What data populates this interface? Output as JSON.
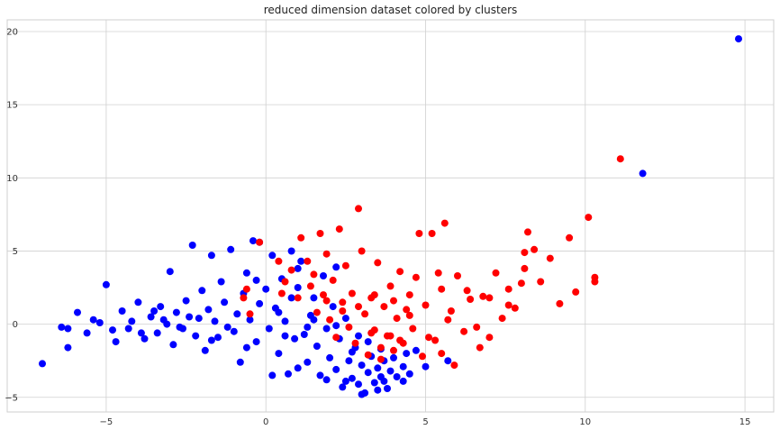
{
  "chart_data": {
    "type": "scatter",
    "title": "reduced dimension dataset colored by clusters",
    "xlabel": "",
    "ylabel": "",
    "xlim": [
      -8.1,
      15.9
    ],
    "ylim": [
      -6.0,
      20.8
    ],
    "xticks": [
      -5,
      0,
      5,
      10,
      15
    ],
    "yticks": [
      -5,
      0,
      5,
      10,
      15,
      20
    ],
    "grid": true,
    "legend": "none",
    "colors": {
      "cluster_blue": "#0000ff",
      "cluster_red": "#ff0000"
    },
    "series": [
      {
        "color": "#0000ff",
        "points": [
          [
            14.8,
            19.5
          ],
          [
            11.8,
            10.3
          ],
          [
            -7.0,
            -2.7
          ],
          [
            -6.4,
            -0.2
          ],
          [
            -6.2,
            -1.6
          ],
          [
            -5.6,
            -0.6
          ],
          [
            -5.9,
            0.8
          ],
          [
            -5.4,
            0.3
          ],
          [
            -5.0,
            2.7
          ],
          [
            -4.7,
            -1.2
          ],
          [
            -4.5,
            0.9
          ],
          [
            -4.3,
            -0.3
          ],
          [
            -4.0,
            1.5
          ],
          [
            -3.8,
            -1.0
          ],
          [
            -3.6,
            0.5
          ],
          [
            -3.4,
            -0.6
          ],
          [
            -3.3,
            1.2
          ],
          [
            -3.1,
            0.0
          ],
          [
            -3.0,
            3.6
          ],
          [
            -2.9,
            -1.4
          ],
          [
            -2.8,
            0.8
          ],
          [
            -2.6,
            -0.3
          ],
          [
            -2.5,
            1.6
          ],
          [
            -2.3,
            5.4
          ],
          [
            -2.2,
            -0.8
          ],
          [
            -2.1,
            0.4
          ],
          [
            -2.0,
            2.3
          ],
          [
            -1.9,
            -1.8
          ],
          [
            -1.8,
            1.0
          ],
          [
            -1.7,
            4.7
          ],
          [
            -1.6,
            0.2
          ],
          [
            -1.5,
            -0.9
          ],
          [
            -1.4,
            2.9
          ],
          [
            -1.3,
            1.5
          ],
          [
            -1.1,
            5.1
          ],
          [
            -1.0,
            -0.5
          ],
          [
            -0.9,
            0.7
          ],
          [
            -0.8,
            -2.6
          ],
          [
            -0.7,
            2.1
          ],
          [
            -0.6,
            3.5
          ],
          [
            -0.5,
            0.3
          ],
          [
            -0.4,
            5.7
          ],
          [
            -0.3,
            -1.2
          ],
          [
            -0.2,
            1.4
          ],
          [
            0.0,
            2.4
          ],
          [
            0.1,
            -0.3
          ],
          [
            0.2,
            4.7
          ],
          [
            0.3,
            1.1
          ],
          [
            0.4,
            -2.0
          ],
          [
            0.5,
            3.1
          ],
          [
            0.6,
            0.2
          ],
          [
            0.7,
            -3.4
          ],
          [
            0.8,
            1.8
          ],
          [
            0.9,
            -1.0
          ],
          [
            1.0,
            2.5
          ],
          [
            1.1,
            4.3
          ],
          [
            1.2,
            -0.7
          ],
          [
            1.3,
            -2.6
          ],
          [
            1.4,
            0.6
          ],
          [
            1.5,
            1.8
          ],
          [
            1.6,
            -1.5
          ],
          [
            1.7,
            -3.5
          ],
          [
            1.8,
            3.3
          ],
          [
            1.9,
            -0.3
          ],
          [
            2.0,
            -2.3
          ],
          [
            2.1,
            1.2
          ],
          [
            2.2,
            -3.1
          ],
          [
            2.3,
            -1.0
          ],
          [
            2.4,
            -4.3
          ],
          [
            2.5,
            0.4
          ],
          [
            2.6,
            -2.5
          ],
          [
            2.7,
            -3.7
          ],
          [
            2.8,
            -1.6
          ],
          [
            2.9,
            -4.1
          ],
          [
            3.0,
            -2.8
          ],
          [
            3.1,
            -4.7
          ],
          [
            3.2,
            -3.3
          ],
          [
            3.3,
            -2.2
          ],
          [
            3.4,
            -4.0
          ],
          [
            3.5,
            -3.0
          ],
          [
            3.6,
            -3.6
          ],
          [
            3.7,
            -2.5
          ],
          [
            3.8,
            -4.4
          ],
          [
            3.9,
            -3.2
          ],
          [
            4.1,
            -3.6
          ],
          [
            4.3,
            -2.9
          ],
          [
            4.5,
            -3.4
          ],
          [
            4.7,
            -1.8
          ],
          [
            5.0,
            -2.9
          ],
          [
            5.7,
            -2.5
          ],
          [
            -4.8,
            -0.4
          ],
          [
            -4.2,
            0.2
          ],
          [
            -3.9,
            -0.6
          ],
          [
            -3.5,
            0.9
          ],
          [
            -3.2,
            0.3
          ],
          [
            -2.7,
            -0.2
          ],
          [
            -2.4,
            0.5
          ],
          [
            -1.2,
            -0.2
          ],
          [
            0.6,
            -0.8
          ],
          [
            1.3,
            -0.2
          ],
          [
            2.2,
            -0.1
          ],
          [
            2.7,
            -1.9
          ],
          [
            3.2,
            -1.2
          ],
          [
            3.6,
            -1.7
          ],
          [
            4.0,
            -2.3
          ],
          [
            4.4,
            -2.0
          ],
          [
            0.2,
            -3.5
          ],
          [
            1.0,
            -3.0
          ],
          [
            1.9,
            -3.8
          ],
          [
            2.5,
            -3.9
          ],
          [
            3.0,
            -4.8
          ],
          [
            3.5,
            -4.5
          ],
          [
            -6.2,
            -0.3
          ],
          [
            -5.2,
            0.1
          ],
          [
            -1.7,
            -1.1
          ],
          [
            -0.6,
            -1.6
          ],
          [
            0.4,
            0.8
          ],
          [
            1.5,
            0.3
          ],
          [
            2.9,
            -0.8
          ],
          [
            3.7,
            -3.9
          ],
          [
            4.3,
            -3.9
          ],
          [
            0.8,
            5.0
          ],
          [
            -0.2,
            5.6
          ],
          [
            2.2,
            3.9
          ],
          [
            1.0,
            3.8
          ],
          [
            -0.3,
            3.0
          ]
        ]
      },
      {
        "color": "#ff0000",
        "points": [
          [
            11.1,
            11.3
          ],
          [
            10.1,
            7.3
          ],
          [
            9.5,
            5.9
          ],
          [
            10.3,
            3.2
          ],
          [
            10.3,
            2.9
          ],
          [
            9.2,
            1.4
          ],
          [
            8.9,
            4.5
          ],
          [
            8.6,
            2.9
          ],
          [
            8.2,
            6.3
          ],
          [
            8.4,
            5.1
          ],
          [
            8.1,
            4.9
          ],
          [
            7.8,
            1.1
          ],
          [
            7.6,
            2.4
          ],
          [
            7.4,
            0.4
          ],
          [
            7.2,
            3.5
          ],
          [
            7.0,
            -0.9
          ],
          [
            6.6,
            -0.2
          ],
          [
            6.4,
            1.7
          ],
          [
            6.2,
            -0.5
          ],
          [
            6.0,
            3.3
          ],
          [
            5.8,
            0.9
          ],
          [
            5.6,
            6.9
          ],
          [
            5.5,
            2.4
          ],
          [
            5.3,
            -1.1
          ],
          [
            5.2,
            6.2
          ],
          [
            5.0,
            1.3
          ],
          [
            4.8,
            6.2
          ],
          [
            4.7,
            3.2
          ],
          [
            4.6,
            -0.3
          ],
          [
            4.5,
            2.0
          ],
          [
            4.4,
            1.0
          ],
          [
            4.3,
            -1.3
          ],
          [
            4.2,
            3.6
          ],
          [
            4.1,
            0.4
          ],
          [
            4.0,
            -1.8
          ],
          [
            3.9,
            2.6
          ],
          [
            3.8,
            -0.8
          ],
          [
            3.7,
            1.2
          ],
          [
            3.6,
            -1.6
          ],
          [
            3.5,
            4.2
          ],
          [
            3.4,
            -0.4
          ],
          [
            3.3,
            1.8
          ],
          [
            3.2,
            -2.1
          ],
          [
            3.1,
            0.7
          ],
          [
            3.0,
            5.0
          ],
          [
            2.9,
            7.9
          ],
          [
            2.8,
            -1.3
          ],
          [
            2.7,
            2.1
          ],
          [
            2.6,
            -0.2
          ],
          [
            2.5,
            4.0
          ],
          [
            2.4,
            1.5
          ],
          [
            2.3,
            6.5
          ],
          [
            2.2,
            -0.9
          ],
          [
            2.1,
            3.0
          ],
          [
            2.0,
            0.3
          ],
          [
            1.9,
            4.8
          ],
          [
            1.8,
            2.0
          ],
          [
            1.7,
            6.2
          ],
          [
            1.6,
            0.8
          ],
          [
            1.5,
            3.4
          ],
          [
            1.4,
            2.6
          ],
          [
            1.3,
            4.3
          ],
          [
            1.1,
            5.9
          ],
          [
            1.0,
            1.8
          ],
          [
            0.8,
            3.7
          ],
          [
            0.6,
            2.9
          ],
          [
            0.5,
            2.1
          ],
          [
            0.4,
            4.3
          ],
          [
            -0.2,
            5.6
          ],
          [
            -0.6,
            2.4
          ],
          [
            -0.7,
            1.8
          ],
          [
            -0.5,
            0.7
          ],
          [
            8.0,
            2.8
          ],
          [
            9.7,
            2.2
          ],
          [
            7.0,
            1.8
          ],
          [
            6.7,
            -1.6
          ],
          [
            5.9,
            -2.8
          ],
          [
            5.5,
            -2.0
          ],
          [
            5.1,
            -0.9
          ],
          [
            4.9,
            -2.2
          ],
          [
            4.2,
            -1.1
          ],
          [
            3.9,
            -0.8
          ],
          [
            3.6,
            -2.4
          ],
          [
            3.3,
            -0.6
          ],
          [
            6.8,
            1.9
          ],
          [
            7.6,
            1.3
          ],
          [
            8.1,
            3.8
          ],
          [
            5.4,
            3.5
          ],
          [
            6.3,
            2.3
          ],
          [
            5.7,
            0.3
          ],
          [
            4.5,
            0.6
          ],
          [
            4.0,
            1.6
          ],
          [
            3.4,
            2.0
          ],
          [
            2.9,
            1.2
          ],
          [
            2.4,
            0.9
          ],
          [
            1.9,
            1.6
          ]
        ]
      }
    ]
  }
}
